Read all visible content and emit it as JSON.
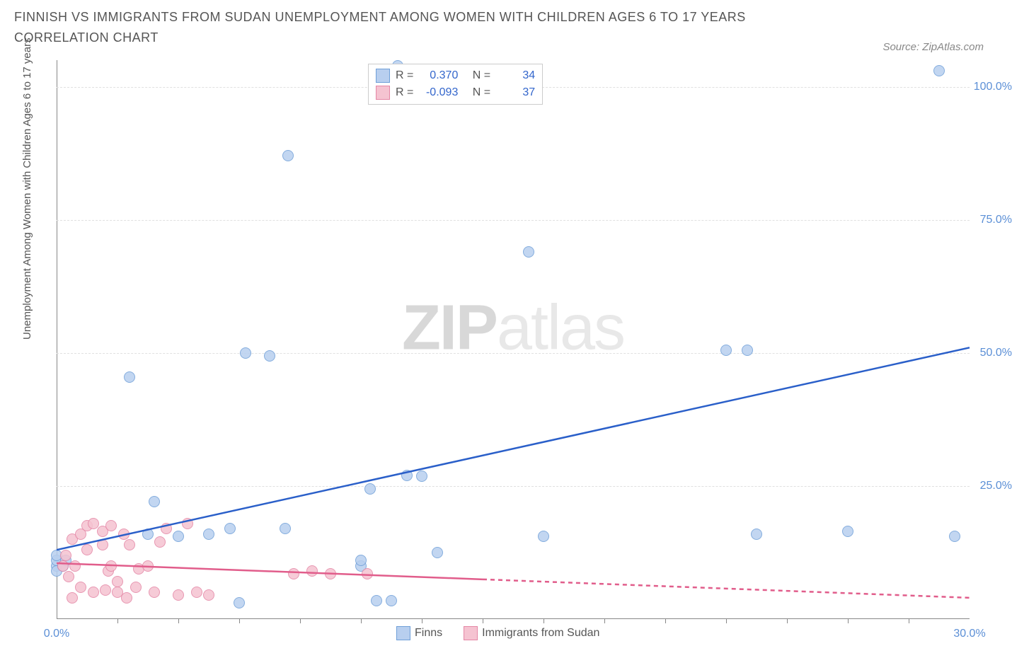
{
  "title": "FINNISH VS IMMIGRANTS FROM SUDAN UNEMPLOYMENT AMONG WOMEN WITH CHILDREN AGES 6 TO 17 YEARS CORRELATION CHART",
  "source": "Source: ZipAtlas.com",
  "y_axis_label": "Unemployment Among Women with Children Ages 6 to 17 years",
  "watermark_a": "ZIP",
  "watermark_b": "atlas",
  "chart": {
    "type": "scatter",
    "xlim": [
      0,
      30
    ],
    "ylim": [
      0,
      105
    ],
    "x_ticks": [
      0,
      30
    ],
    "x_tick_labels": [
      "0.0%",
      "30.0%"
    ],
    "x_minor_ticks": [
      2,
      4,
      6,
      8,
      10,
      12,
      14,
      16,
      18,
      20,
      22,
      24,
      26,
      28
    ],
    "y_ticks": [
      25,
      50,
      75,
      100
    ],
    "y_tick_labels": [
      "25.0%",
      "50.0%",
      "75.0%",
      "100.0%"
    ],
    "grid_color": "#e0e0e0",
    "background_color": "#ffffff",
    "axis_color": "#888888",
    "tick_label_color": "#5b8fd6",
    "marker_radius": 8
  },
  "series": [
    {
      "name": "Finns",
      "fill": "#b8cfef",
      "stroke": "#6f9fd8",
      "line_color": "#2a5fc9",
      "line_width": 2.5,
      "trend": {
        "x1": 0,
        "y1": 13,
        "x2": 30,
        "y2": 51,
        "dash_after_x": null
      },
      "stats": {
        "R_label": "R =",
        "R": "0.370",
        "N_label": "N =",
        "N": "34"
      },
      "points": [
        [
          0,
          10
        ],
        [
          0,
          11
        ],
        [
          0,
          12
        ],
        [
          0,
          9
        ],
        [
          0.2,
          10
        ],
        [
          0.3,
          11
        ],
        [
          2.4,
          45.5
        ],
        [
          3,
          16
        ],
        [
          3.2,
          22
        ],
        [
          4,
          15.5
        ],
        [
          5,
          16
        ],
        [
          5.7,
          17
        ],
        [
          6,
          3
        ],
        [
          6.2,
          50
        ],
        [
          7,
          49.5
        ],
        [
          7.5,
          17
        ],
        [
          7.6,
          87
        ],
        [
          10,
          10
        ],
        [
          10,
          11
        ],
        [
          10.3,
          24.5
        ],
        [
          10.5,
          3.5
        ],
        [
          11,
          3.5
        ],
        [
          11.2,
          104
        ],
        [
          11.5,
          27
        ],
        [
          12,
          26.8
        ],
        [
          12.5,
          12.5
        ],
        [
          15.5,
          69
        ],
        [
          16,
          15.5
        ],
        [
          22,
          50.5
        ],
        [
          22.7,
          50.5
        ],
        [
          23,
          16
        ],
        [
          26,
          16.5
        ],
        [
          29,
          103
        ],
        [
          29.5,
          15.5
        ]
      ]
    },
    {
      "name": "Immigrants from Sudan",
      "fill": "#f5c3d1",
      "stroke": "#e486a5",
      "line_color": "#e15d8b",
      "line_width": 2.5,
      "trend": {
        "x1": 0,
        "y1": 10.5,
        "x2": 30,
        "y2": 4,
        "dash_after_x": 14
      },
      "stats": {
        "R_label": "R =",
        "R": "-0.093",
        "N_label": "N =",
        "N": "37"
      },
      "points": [
        [
          0.2,
          10
        ],
        [
          0.3,
          12
        ],
        [
          0.4,
          8
        ],
        [
          0.5,
          15
        ],
        [
          0.5,
          4
        ],
        [
          0.6,
          10
        ],
        [
          0.8,
          16
        ],
        [
          0.8,
          6
        ],
        [
          1,
          17.5
        ],
        [
          1,
          13
        ],
        [
          1.2,
          5
        ],
        [
          1.2,
          18
        ],
        [
          1.5,
          16.5
        ],
        [
          1.5,
          14
        ],
        [
          1.6,
          5.5
        ],
        [
          1.7,
          9
        ],
        [
          1.8,
          10
        ],
        [
          1.8,
          17.5
        ],
        [
          2,
          5
        ],
        [
          2,
          7
        ],
        [
          2.2,
          16
        ],
        [
          2.3,
          4
        ],
        [
          2.4,
          14
        ],
        [
          2.6,
          6
        ],
        [
          2.7,
          9.5
        ],
        [
          3,
          10
        ],
        [
          3.2,
          5
        ],
        [
          3.4,
          14.5
        ],
        [
          3.6,
          17
        ],
        [
          4,
          4.5
        ],
        [
          4.3,
          18
        ],
        [
          4.6,
          5
        ],
        [
          5,
          4.5
        ],
        [
          7.8,
          8.5
        ],
        [
          8.4,
          9
        ],
        [
          9,
          8.5
        ],
        [
          10.2,
          8.5
        ]
      ]
    }
  ],
  "legend": {
    "items": [
      "Finns",
      "Immigrants from Sudan"
    ]
  }
}
